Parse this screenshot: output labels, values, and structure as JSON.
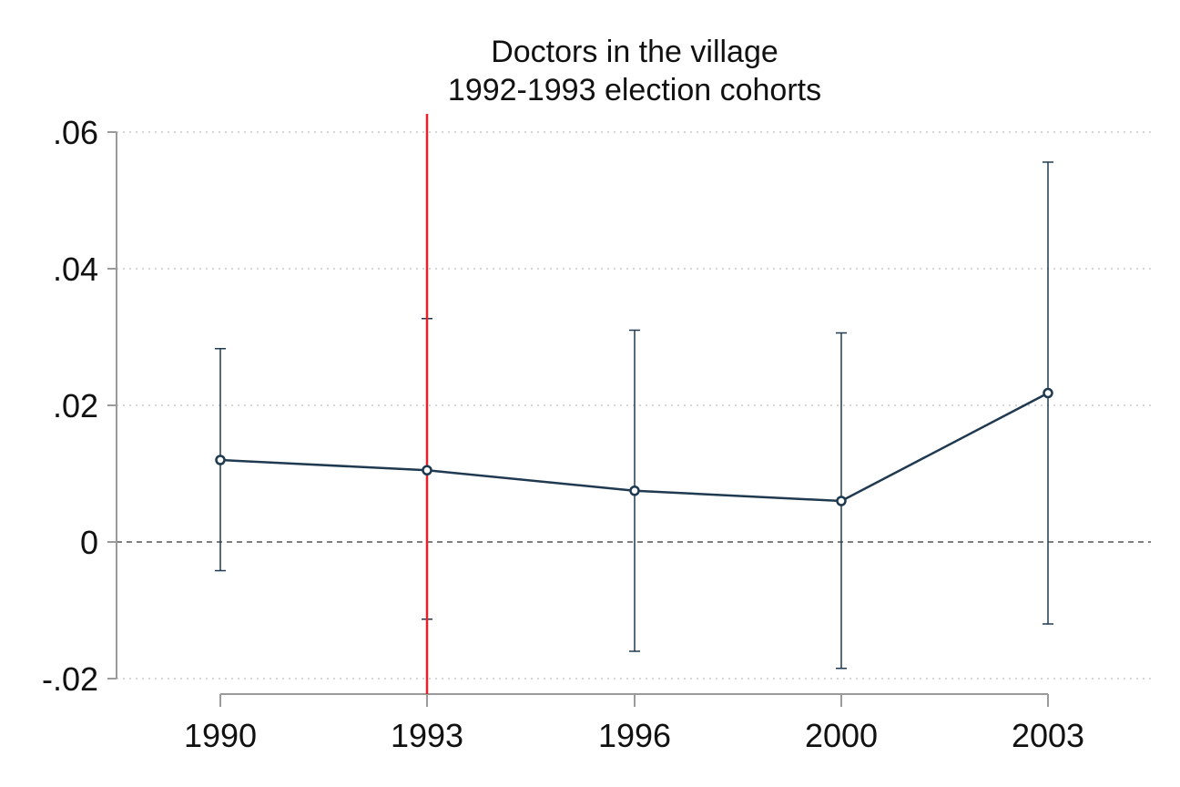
{
  "chart_data": {
    "type": "line",
    "title": "Doctors in the village",
    "subtitle": "1992-1993 election cohorts",
    "xlabel": "",
    "ylabel": "",
    "x": [
      "1990",
      "1993",
      "1996",
      "2000",
      "2003"
    ],
    "series": [
      {
        "values": [
          0.012,
          0.0105,
          0.0075,
          0.006,
          0.0218
        ],
        "ci_lower": [
          -0.0042,
          -0.0113,
          -0.016,
          -0.0185,
          -0.012
        ],
        "ci_upper": [
          0.0283,
          0.0327,
          0.031,
          0.0306,
          0.0556
        ]
      }
    ],
    "ylim": [
      -0.02,
      0.06
    ],
    "yticks": [
      {
        "value": -0.02,
        "label": "-.02"
      },
      {
        "value": 0,
        "label": "0"
      },
      {
        "value": 0.02,
        "label": ".02"
      },
      {
        "value": 0.04,
        "label": ".04"
      },
      {
        "value": 0.06,
        "label": ".06"
      }
    ],
    "reference_lines": {
      "horizontal_zero": {
        "value": 0,
        "style": "dashed",
        "color": "#555555"
      },
      "vertical_event": {
        "x": "1993",
        "color": "#e8202a"
      }
    },
    "grid": "horizontal-dotted",
    "legend": "none",
    "colors": {
      "series": "#1f3a50",
      "grid": "#c8c8c8",
      "axis": "#9a9a9a",
      "event_line": "#e8202a",
      "zero_line": "#555555"
    }
  }
}
